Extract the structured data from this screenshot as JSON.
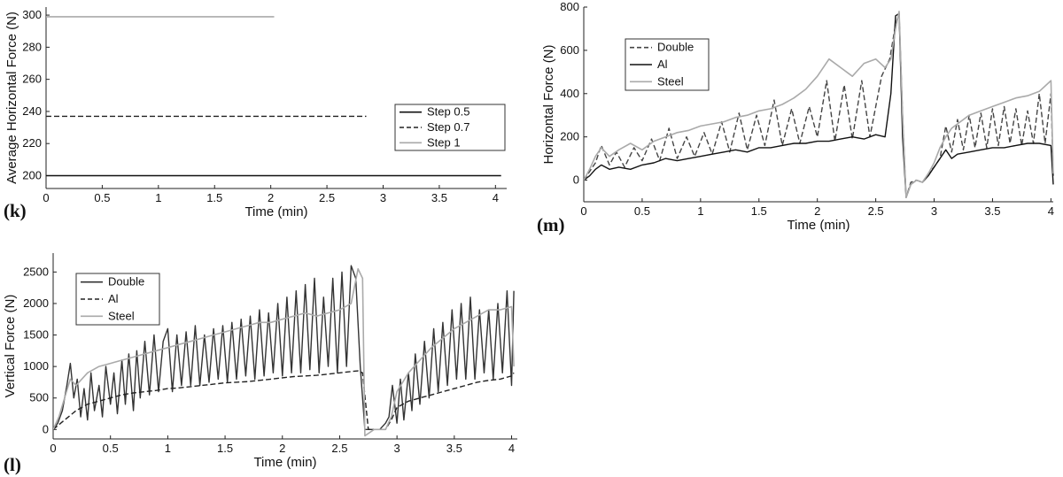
{
  "chart_data": [
    {
      "type": "line",
      "panel_label": "(k)",
      "xlabel": "Time (min)",
      "ylabel": "Average Horizontal Force (N)",
      "xlim": [
        0,
        4.1
      ],
      "ylim": [
        192,
        305
      ],
      "xticks": [
        0,
        0.5,
        1,
        1.5,
        2,
        2.5,
        3,
        3.5,
        4
      ],
      "xtick_labels": [
        "0",
        "0.5",
        "1",
        "1.5",
        "2",
        "2.5",
        "3",
        "3.5",
        "4"
      ],
      "yticks": [
        200,
        220,
        240,
        260,
        280,
        300
      ],
      "ytick_labels": [
        "200",
        "220",
        "240",
        "260",
        "280",
        "300"
      ],
      "grid": false,
      "legend": "right",
      "series": [
        {
          "name": "Step 0.5",
          "style": "solid",
          "color": "#111111",
          "x": [
            0,
            4.05
          ],
          "y": [
            200,
            200
          ]
        },
        {
          "name": "Step 0.7",
          "style": "dashed",
          "color": "#222222",
          "x": [
            0,
            2.85
          ],
          "y": [
            237,
            237
          ]
        },
        {
          "name": "Step 1",
          "style": "solid",
          "color": "#aaaaaa",
          "x": [
            0,
            2.03
          ],
          "y": [
            299,
            299
          ]
        }
      ]
    },
    {
      "type": "line",
      "panel_label": "(m)",
      "xlabel": "Time (min)",
      "ylabel": "Horizontal Force (N)",
      "xlim": [
        0,
        4.02
      ],
      "ylim": [
        -100,
        800
      ],
      "xticks": [
        0,
        0.5,
        1,
        1.5,
        2,
        2.5,
        3,
        3.5,
        4
      ],
      "xtick_labels": [
        "0",
        "0.5",
        "1",
        "1.5",
        "2",
        "2.5",
        "3",
        "3.5",
        "4"
      ],
      "yticks": [
        0,
        200,
        400,
        600,
        800
      ],
      "ytick_labels": [
        "0",
        "200",
        "400",
        "600",
        "800"
      ],
      "grid": false,
      "legend": "top-left",
      "series": [
        {
          "name": "Double",
          "style": "dashed",
          "color": "#444444",
          "x": [
            0,
            0.05,
            0.1,
            0.15,
            0.22,
            0.28,
            0.35,
            0.43,
            0.5,
            0.58,
            0.65,
            0.73,
            0.8,
            0.88,
            0.95,
            1.03,
            1.1,
            1.18,
            1.25,
            1.33,
            1.4,
            1.48,
            1.55,
            1.63,
            1.7,
            1.78,
            1.85,
            1.93,
            2.0,
            2.08,
            2.15,
            2.23,
            2.3,
            2.38,
            2.45,
            2.55,
            2.62,
            2.67,
            2.7,
            2.73,
            2.76,
            2.8,
            2.85,
            2.9,
            2.95,
            3.0,
            3.05,
            3.1,
            3.15,
            3.2,
            3.25,
            3.3,
            3.35,
            3.4,
            3.45,
            3.5,
            3.55,
            3.6,
            3.65,
            3.7,
            3.75,
            3.8,
            3.85,
            3.9,
            3.95,
            4.0,
            4.02
          ],
          "y": [
            0,
            40,
            80,
            160,
            70,
            130,
            60,
            150,
            90,
            190,
            90,
            240,
            100,
            200,
            110,
            220,
            120,
            270,
            130,
            310,
            140,
            300,
            160,
            370,
            160,
            330,
            170,
            340,
            200,
            460,
            180,
            440,
            190,
            460,
            200,
            480,
            560,
            720,
            770,
            300,
            -80,
            -10,
            0,
            -10,
            30,
            60,
            100,
            250,
            130,
            280,
            140,
            300,
            150,
            310,
            150,
            330,
            160,
            340,
            170,
            330,
            160,
            320,
            170,
            400,
            170,
            400,
            20
          ]
        },
        {
          "name": "Al",
          "style": "solid",
          "color": "#111111",
          "x": [
            0,
            0.05,
            0.1,
            0.15,
            0.22,
            0.3,
            0.4,
            0.5,
            0.6,
            0.7,
            0.8,
            0.9,
            1.0,
            1.1,
            1.2,
            1.3,
            1.4,
            1.5,
            1.6,
            1.7,
            1.8,
            1.9,
            2.0,
            2.1,
            2.2,
            2.3,
            2.4,
            2.5,
            2.58,
            2.63,
            2.67,
            2.7,
            2.73,
            2.76,
            2.8,
            2.85,
            2.9,
            2.95,
            3.0,
            3.05,
            3.1,
            3.15,
            3.2,
            3.3,
            3.4,
            3.5,
            3.6,
            3.7,
            3.8,
            3.9,
            4.0,
            4.02
          ],
          "y": [
            0,
            20,
            50,
            70,
            50,
            60,
            50,
            70,
            80,
            100,
            90,
            100,
            110,
            120,
            130,
            140,
            130,
            150,
            150,
            160,
            170,
            170,
            180,
            180,
            190,
            200,
            190,
            210,
            200,
            400,
            760,
            770,
            200,
            -80,
            -20,
            0,
            -10,
            20,
            60,
            100,
            140,
            100,
            120,
            130,
            140,
            150,
            150,
            160,
            170,
            170,
            160,
            -20
          ]
        },
        {
          "name": "Steel",
          "style": "solid",
          "color": "#aaaaaa",
          "x": [
            0,
            0.05,
            0.1,
            0.15,
            0.22,
            0.3,
            0.4,
            0.5,
            0.6,
            0.7,
            0.8,
            0.9,
            1.0,
            1.1,
            1.2,
            1.3,
            1.4,
            1.5,
            1.6,
            1.7,
            1.8,
            1.9,
            2.0,
            2.1,
            2.2,
            2.3,
            2.4,
            2.5,
            2.58,
            2.63,
            2.67,
            2.7,
            2.73,
            2.76,
            2.8,
            2.85,
            2.9,
            2.95,
            3.0,
            3.05,
            3.1,
            3.15,
            3.2,
            3.3,
            3.4,
            3.5,
            3.6,
            3.7,
            3.8,
            3.9,
            4.0,
            4.02
          ],
          "y": [
            0,
            50,
            110,
            150,
            110,
            140,
            170,
            140,
            180,
            200,
            220,
            230,
            250,
            260,
            270,
            290,
            300,
            320,
            330,
            350,
            380,
            420,
            480,
            560,
            520,
            480,
            540,
            560,
            520,
            560,
            700,
            780,
            300,
            -80,
            -20,
            0,
            -10,
            30,
            80,
            150,
            200,
            240,
            260,
            300,
            320,
            340,
            360,
            380,
            390,
            410,
            460,
            30
          ]
        }
      ]
    },
    {
      "type": "line",
      "panel_label": "(l)",
      "xlabel": "Time (min)",
      "ylabel": "Vertical Force (N)",
      "xlim": [
        0,
        4.05
      ],
      "ylim": [
        -150,
        2800
      ],
      "xticks": [
        0,
        0.5,
        1,
        1.5,
        2,
        2.5,
        3,
        3.5,
        4
      ],
      "xtick_labels": [
        "0",
        "0.5",
        "1",
        "1.5",
        "2",
        "2.5",
        "3",
        "3.5",
        "4"
      ],
      "yticks": [
        0,
        500,
        1000,
        1500,
        2000,
        2500
      ],
      "ytick_labels": [
        "0",
        "500",
        "1000",
        "1500",
        "2000",
        "2500"
      ],
      "grid": false,
      "legend": "top-left",
      "series": [
        {
          "name": "Double",
          "style": "solid",
          "color": "#333333",
          "x": [
            0,
            0.04,
            0.08,
            0.12,
            0.15,
            0.18,
            0.21,
            0.24,
            0.27,
            0.3,
            0.33,
            0.36,
            0.4,
            0.43,
            0.46,
            0.5,
            0.53,
            0.56,
            0.6,
            0.63,
            0.66,
            0.7,
            0.73,
            0.76,
            0.8,
            0.84,
            0.88,
            0.92,
            0.96,
            1.0,
            1.04,
            1.08,
            1.12,
            1.16,
            1.2,
            1.24,
            1.28,
            1.32,
            1.36,
            1.4,
            1.44,
            1.48,
            1.52,
            1.56,
            1.6,
            1.64,
            1.68,
            1.72,
            1.76,
            1.8,
            1.84,
            1.88,
            1.92,
            1.96,
            2.0,
            2.04,
            2.08,
            2.12,
            2.16,
            2.2,
            2.24,
            2.28,
            2.32,
            2.36,
            2.4,
            2.44,
            2.48,
            2.52,
            2.56,
            2.6,
            2.64,
            2.68,
            2.72,
            2.76,
            2.8,
            2.85,
            2.9,
            2.93,
            2.96,
            3.0,
            3.03,
            3.06,
            3.1,
            3.13,
            3.16,
            3.2,
            3.24,
            3.28,
            3.32,
            3.36,
            3.4,
            3.44,
            3.48,
            3.52,
            3.56,
            3.6,
            3.64,
            3.68,
            3.72,
            3.76,
            3.8,
            3.84,
            3.88,
            3.92,
            3.96,
            4.0,
            4.02
          ],
          "y": [
            0,
            100,
            300,
            700,
            1050,
            500,
            800,
            200,
            650,
            150,
            900,
            300,
            700,
            200,
            1000,
            400,
            900,
            250,
            1100,
            400,
            1200,
            300,
            1250,
            500,
            1400,
            550,
            1500,
            600,
            1400,
            1600,
            600,
            1500,
            700,
            1550,
            700,
            1650,
            700,
            1500,
            750,
            1600,
            800,
            1650,
            750,
            1700,
            800,
            1750,
            850,
            1800,
            800,
            1900,
            850,
            1850,
            900,
            2000,
            850,
            2100,
            900,
            2200,
            900,
            2300,
            950,
            2400,
            900,
            2100,
            1000,
            2400,
            900,
            2500,
            1000,
            2600,
            2400,
            1000,
            0,
            0,
            0,
            0,
            100,
            200,
            700,
            100,
            800,
            150,
            900,
            300,
            1200,
            400,
            1400,
            500,
            1600,
            600,
            1700,
            700,
            1900,
            800,
            2000,
            800,
            2100,
            800,
            1900,
            900,
            1900,
            800,
            2000,
            900,
            2200,
            700,
            2200
          ]
        },
        {
          "name": "Al",
          "style": "dashed",
          "color": "#222222",
          "x": [
            0,
            0.1,
            0.2,
            0.3,
            0.4,
            0.5,
            0.6,
            0.7,
            0.8,
            0.9,
            1.0,
            1.1,
            1.2,
            1.3,
            1.4,
            1.5,
            1.6,
            1.7,
            1.8,
            1.9,
            2.0,
            2.1,
            2.2,
            2.3,
            2.4,
            2.5,
            2.6,
            2.66,
            2.7,
            2.75,
            2.8,
            2.9,
            2.95,
            3.0,
            3.1,
            3.2,
            3.3,
            3.4,
            3.5,
            3.6,
            3.7,
            3.8,
            3.9,
            4.0,
            4.02
          ],
          "y": [
            0,
            150,
            300,
            400,
            450,
            500,
            550,
            580,
            600,
            620,
            650,
            660,
            680,
            700,
            720,
            740,
            750,
            760,
            780,
            800,
            820,
            840,
            850,
            860,
            880,
            900,
            920,
            930,
            900,
            0,
            0,
            0,
            150,
            350,
            450,
            500,
            550,
            600,
            650,
            700,
            750,
            780,
            800,
            850,
            900
          ]
        },
        {
          "name": "Steel",
          "style": "solid",
          "color": "#aaaaaa",
          "x": [
            0,
            0.05,
            0.1,
            0.15,
            0.2,
            0.3,
            0.4,
            0.5,
            0.6,
            0.7,
            0.8,
            0.9,
            1.0,
            1.1,
            1.2,
            1.3,
            1.4,
            1.5,
            1.6,
            1.7,
            1.8,
            1.9,
            2.0,
            2.1,
            2.2,
            2.3,
            2.4,
            2.5,
            2.6,
            2.66,
            2.7,
            2.72,
            2.76,
            2.8,
            2.85,
            2.9,
            2.95,
            3.0,
            3.1,
            3.2,
            3.3,
            3.4,
            3.5,
            3.6,
            3.7,
            3.8,
            3.9,
            4.0,
            4.02
          ],
          "y": [
            0,
            200,
            500,
            800,
            700,
            900,
            1000,
            1050,
            1100,
            1150,
            1200,
            1250,
            1300,
            1350,
            1400,
            1450,
            1500,
            1550,
            1600,
            1650,
            1700,
            1700,
            1750,
            1800,
            1850,
            1800,
            1850,
            1900,
            2000,
            2550,
            2400,
            -100,
            -50,
            0,
            0,
            0,
            200,
            600,
            900,
            1100,
            1300,
            1450,
            1600,
            1700,
            1800,
            1900,
            1900,
            1950,
            1000
          ]
        }
      ]
    }
  ]
}
